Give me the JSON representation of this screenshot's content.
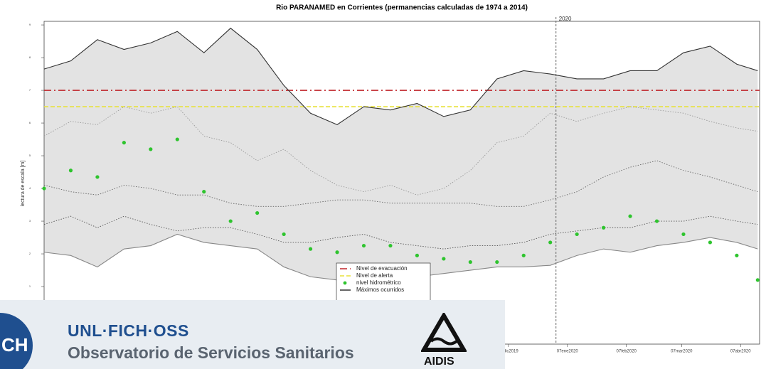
{
  "chart_data": {
    "type": "line",
    "title": "Rio PARANAMED en Corrientes (permanencias calculadas de 1974 a 2014)",
    "ylabel": "lectura de escala [m]",
    "ylim": [
      -0.76,
      9.11
    ],
    "yticks": [
      1,
      2,
      3,
      4,
      5,
      6,
      7,
      8,
      9
    ],
    "xlim": [
      "2019-04-07",
      "2020-04-17"
    ],
    "xticks": [
      {
        "value": "2019-12-07",
        "label": "07dic2019"
      },
      {
        "value": "2020-01-07",
        "label": "07ene2020"
      },
      {
        "value": "2020-02-07",
        "label": "07feb2020"
      },
      {
        "value": "2020-03-07",
        "label": "07mar2020"
      },
      {
        "value": "2020-04-07",
        "label": "07abr2020"
      }
    ],
    "vlines": [
      {
        "value": "2020-01-01",
        "label": "2020"
      }
    ],
    "hlines": [
      {
        "name": "Nivel de evacuación",
        "value": 7,
        "color": "#c0262b",
        "linestyle": "dashdot"
      },
      {
        "name": "Nivel de alerta",
        "value": 6.5,
        "color": "#e8e23a",
        "linestyle": "dashed"
      }
    ],
    "x": [
      "2019-04-07",
      "2019-04-21",
      "2019-05-05",
      "2019-05-19",
      "2019-06-02",
      "2019-06-16",
      "2019-06-30",
      "2019-07-14",
      "2019-07-28",
      "2019-08-11",
      "2019-08-25",
      "2019-09-08",
      "2019-09-22",
      "2019-10-06",
      "2019-10-20",
      "2019-11-03",
      "2019-11-17",
      "2019-12-01",
      "2019-12-15",
      "2019-12-29",
      "2020-01-12",
      "2020-01-26",
      "2020-02-09",
      "2020-02-23",
      "2020-03-08",
      "2020-03-22",
      "2020-04-05",
      "2020-04-16"
    ],
    "band_color": "#e3e3e3",
    "series": [
      {
        "name": "Máximos ocurridos",
        "color": "#333333",
        "linestyle": "solid",
        "values": [
          7.65,
          7.9,
          8.55,
          8.25,
          8.45,
          8.8,
          8.15,
          8.9,
          8.25,
          7.15,
          6.3,
          5.95,
          6.5,
          6.4,
          6.6,
          6.2,
          6.4,
          7.35,
          7.6,
          7.5,
          7.35,
          7.35,
          7.6,
          7.6,
          8.15,
          8.35,
          7.8,
          7.6
        ]
      },
      {
        "color": "#9a9a9a",
        "linestyle": "dotted",
        "values": [
          5.6,
          6.05,
          5.95,
          6.5,
          6.3,
          6.5,
          5.6,
          5.4,
          4.85,
          5.2,
          4.55,
          4.1,
          3.9,
          4.1,
          3.8,
          4.0,
          4.55,
          5.4,
          5.6,
          6.3,
          6.05,
          6.3,
          6.5,
          6.4,
          6.3,
          6.05,
          5.85,
          5.75
        ]
      },
      {
        "color": "#666666",
        "linestyle": "dotted",
        "values": [
          4.1,
          3.9,
          3.8,
          4.1,
          4.0,
          3.8,
          3.8,
          3.55,
          3.45,
          3.45,
          3.55,
          3.65,
          3.65,
          3.55,
          3.55,
          3.55,
          3.55,
          3.45,
          3.45,
          3.65,
          3.9,
          4.35,
          4.65,
          4.85,
          4.55,
          4.35,
          4.1,
          3.9
        ]
      },
      {
        "color": "#555555",
        "linestyle": "dotted",
        "values": [
          2.9,
          3.15,
          2.8,
          3.15,
          2.9,
          2.7,
          2.8,
          2.8,
          2.6,
          2.35,
          2.35,
          2.5,
          2.6,
          2.35,
          2.25,
          2.15,
          2.25,
          2.25,
          2.35,
          2.6,
          2.7,
          2.8,
          2.8,
          3.0,
          3.0,
          3.15,
          3.0,
          2.9
        ]
      },
      {
        "color": "#888888",
        "linestyle": "solid",
        "values": [
          2.05,
          1.95,
          1.6,
          2.15,
          2.25,
          2.6,
          2.35,
          2.25,
          2.15,
          1.6,
          1.3,
          1.2,
          1.2,
          1.3,
          1.3,
          1.4,
          1.5,
          1.6,
          1.6,
          1.65,
          1.95,
          2.15,
          2.05,
          2.25,
          2.35,
          2.5,
          2.35,
          2.15
        ]
      },
      {
        "name": "nivel hidrométrico",
        "color": "#2ec42e",
        "marker": "dot",
        "values": [
          4.0,
          4.55,
          4.35,
          5.4,
          5.2,
          5.5,
          3.9,
          3.0,
          3.25,
          2.6,
          2.15,
          2.05,
          2.25,
          2.25,
          1.95,
          1.85,
          1.75,
          1.75,
          1.95,
          2.35,
          2.6,
          2.8,
          3.15,
          3.0,
          2.6,
          2.35,
          1.95,
          1.2
        ]
      }
    ]
  },
  "overlay": {
    "badge": "CH",
    "title": "UNL·FICH·OSS",
    "subtitle": "Observatorio de Servicios Sanitarios",
    "logo": "AIDIS"
  }
}
